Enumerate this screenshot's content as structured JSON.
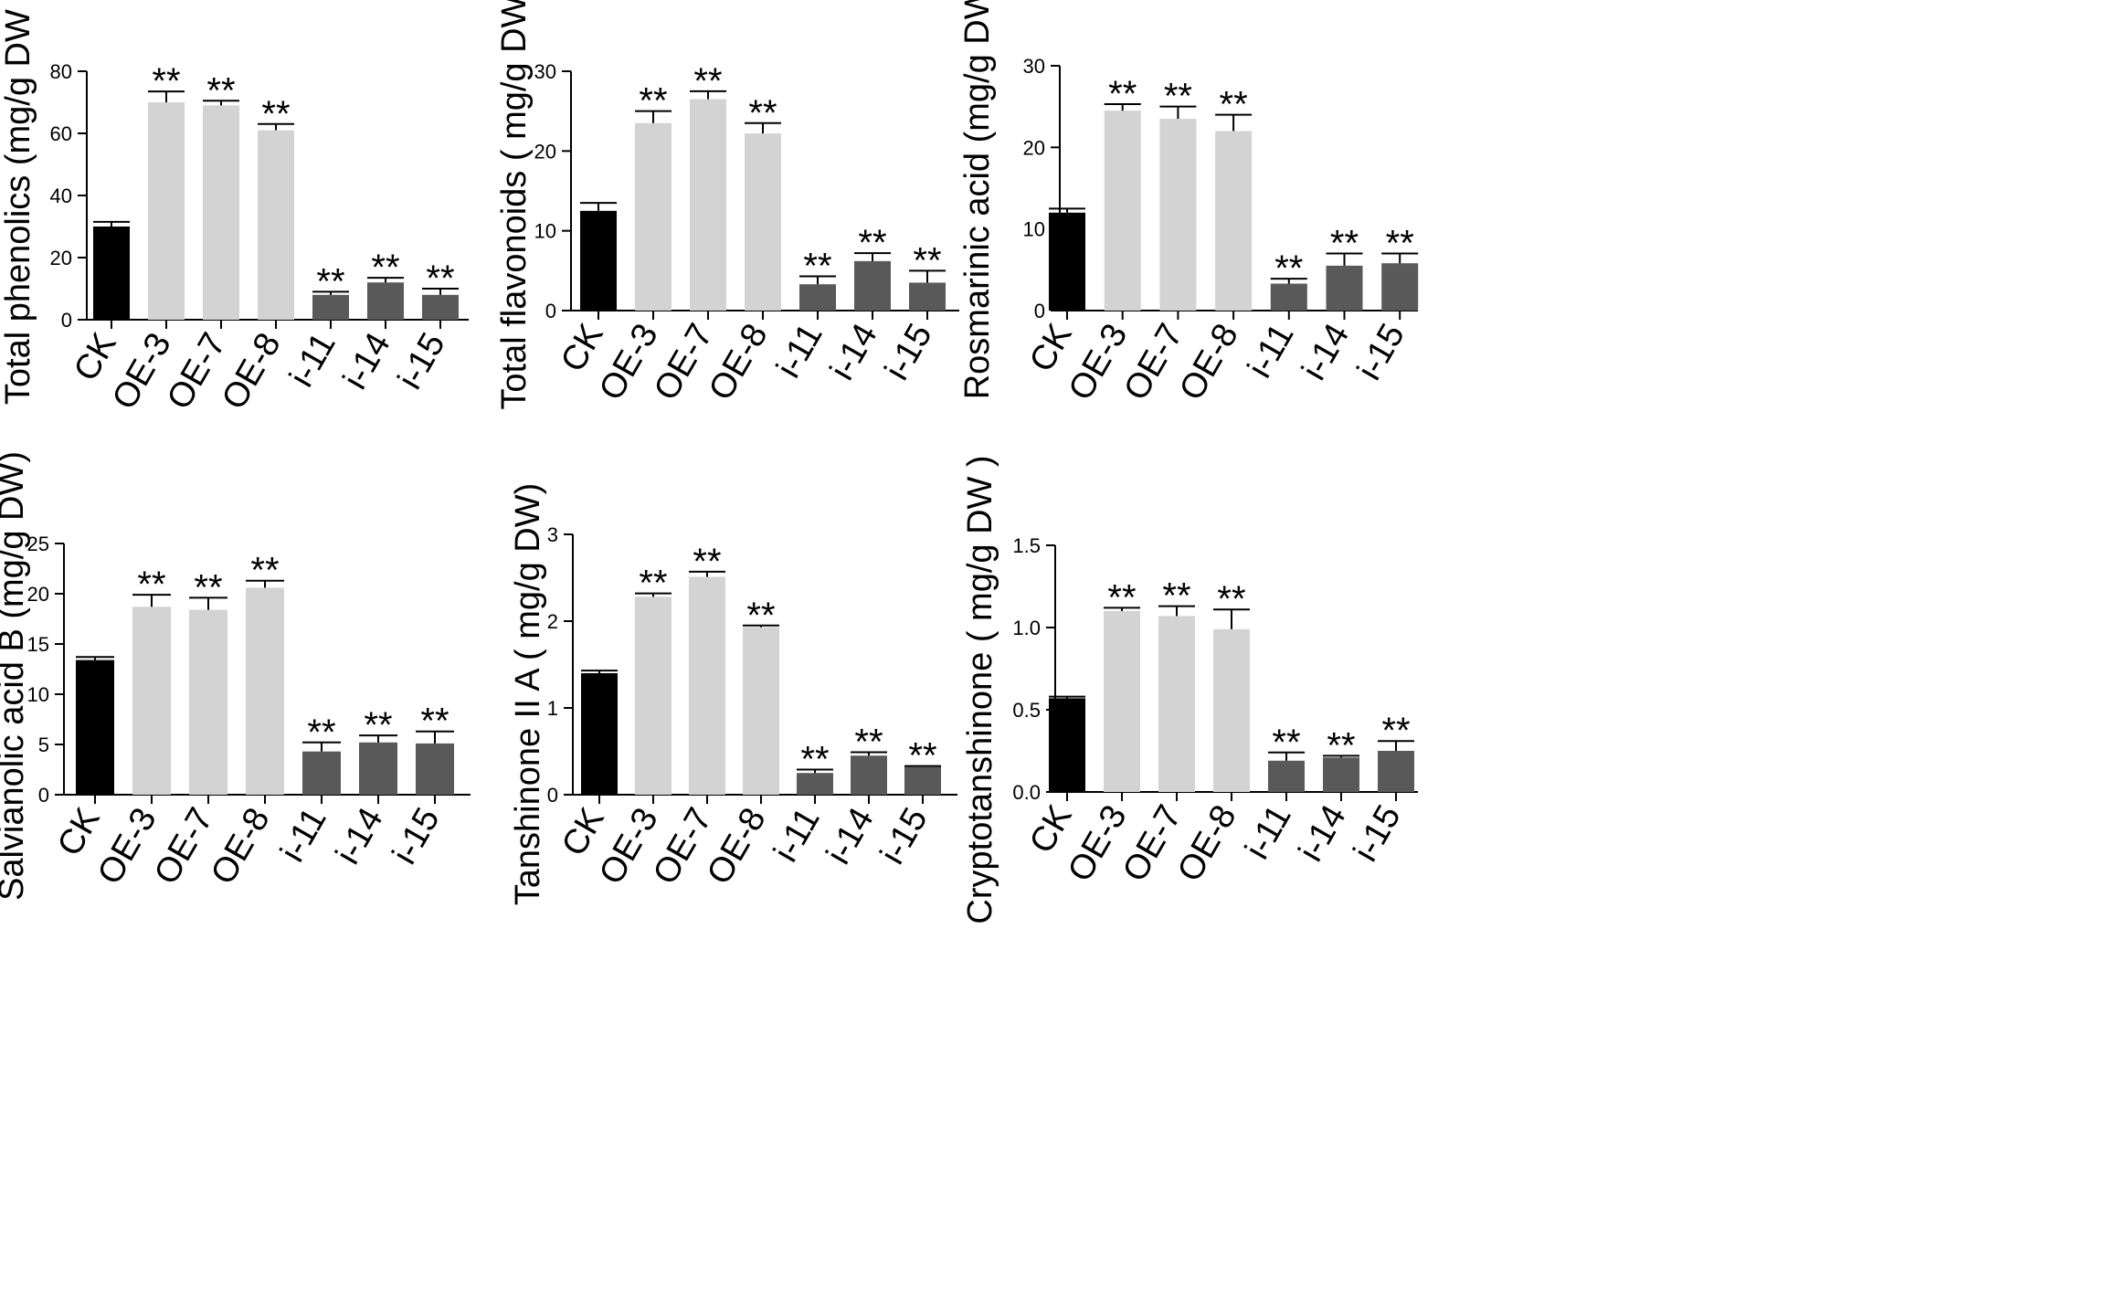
{
  "chart_data": [
    {
      "type": "bar",
      "ylabel": "Total phenolics (mg/g DW )",
      "categories": [
        "CK",
        "OE-3",
        "OE-7",
        "OE-8",
        "i-11",
        "i-14",
        "i-15"
      ],
      "values": [
        30,
        70,
        69,
        61,
        8,
        12,
        8
      ],
      "errors": [
        1.5,
        3.5,
        1.5,
        2,
        1,
        1.5,
        2
      ],
      "significance": [
        "",
        "**",
        "**",
        "**",
        "**",
        "**",
        "**"
      ],
      "ylim": [
        0,
        80
      ],
      "yticks": [
        "0",
        "20",
        "40",
        "60",
        "80"
      ],
      "colors": [
        "#000000",
        "#d3d3d3",
        "#d3d3d3",
        "#d3d3d3",
        "#595959",
        "#595959",
        "#595959"
      ]
    },
    {
      "type": "bar",
      "ylabel": "Total flavonoids ( mg/g DW )",
      "categories": [
        "CK",
        "OE-3",
        "OE-7",
        "OE-8",
        "i-11",
        "i-14",
        "i-15"
      ],
      "values": [
        12.5,
        23.5,
        26.5,
        22.2,
        3.3,
        6.2,
        3.5
      ],
      "errors": [
        1,
        1.5,
        1,
        1.3,
        1,
        1,
        1.5
      ],
      "significance": [
        "",
        "**",
        "**",
        "**",
        "**",
        "**",
        "**"
      ],
      "ylim": [
        0,
        30
      ],
      "yticks": [
        "0",
        "10",
        "20",
        "30"
      ],
      "colors": [
        "#000000",
        "#d3d3d3",
        "#d3d3d3",
        "#d3d3d3",
        "#595959",
        "#595959",
        "#595959"
      ]
    },
    {
      "type": "bar",
      "ylabel": "Rosmarinic acid (mg/g DW)",
      "categories": [
        "CK",
        "OE-3",
        "OE-7",
        "OE-8",
        "i-11",
        "i-14",
        "i-15"
      ],
      "values": [
        12,
        24.5,
        23.5,
        22,
        3.3,
        5.5,
        5.8
      ],
      "errors": [
        0.5,
        0.8,
        1.5,
        2,
        0.6,
        1.5,
        1.2
      ],
      "significance": [
        "",
        "**",
        "**",
        "**",
        "**",
        "**",
        "**"
      ],
      "ylim": [
        0,
        30
      ],
      "yticks": [
        "0",
        "10",
        "20",
        "30"
      ],
      "colors": [
        "#000000",
        "#d3d3d3",
        "#d3d3d3",
        "#d3d3d3",
        "#595959",
        "#595959",
        "#595959"
      ]
    },
    {
      "type": "bar",
      "ylabel": "Salvianolic acid B (mg/g DW)",
      "categories": [
        "CK",
        "OE-3",
        "OE-7",
        "OE-8",
        "i-11",
        "i-14",
        "i-15"
      ],
      "values": [
        13.4,
        18.7,
        18.4,
        20.6,
        4.3,
        5.2,
        5.1
      ],
      "errors": [
        0.3,
        1.2,
        1.2,
        0.7,
        0.9,
        0.7,
        1.2
      ],
      "significance": [
        "",
        "**",
        "**",
        "**",
        "**",
        "**",
        "**"
      ],
      "ylim": [
        0,
        25
      ],
      "yticks": [
        "0",
        "5",
        "10",
        "15",
        "20",
        "25"
      ],
      "colors": [
        "#000000",
        "#d3d3d3",
        "#d3d3d3",
        "#d3d3d3",
        "#595959",
        "#595959",
        "#595959"
      ]
    },
    {
      "type": "bar",
      "ylabel": "Tanshinone II A ( mg/g DW)",
      "categories": [
        "CK",
        "OE-3",
        "OE-7",
        "OE-8",
        "i-11",
        "i-14",
        "i-15"
      ],
      "values": [
        1.4,
        2.28,
        2.51,
        1.93,
        0.25,
        0.45,
        0.32
      ],
      "errors": [
        0.03,
        0.04,
        0.06,
        0.02,
        0.04,
        0.04,
        0.01
      ],
      "significance": [
        "",
        "**",
        "**",
        "**",
        "**",
        "**",
        "**"
      ],
      "ylim": [
        0,
        3
      ],
      "yticks": [
        "0",
        "1",
        "2",
        "3"
      ],
      "colors": [
        "#000000",
        "#d3d3d3",
        "#d3d3d3",
        "#d3d3d3",
        "#595959",
        "#595959",
        "#595959"
      ]
    },
    {
      "type": "bar",
      "ylabel": "Cryptotanshinone ( mg/g DW )",
      "categories": [
        "CK",
        "OE-3",
        "OE-7",
        "OE-8",
        "i-11",
        "i-14",
        "i-15"
      ],
      "values": [
        0.57,
        1.1,
        1.07,
        0.99,
        0.19,
        0.21,
        0.25
      ],
      "errors": [
        0.01,
        0.02,
        0.06,
        0.12,
        0.05,
        0.01,
        0.06
      ],
      "significance": [
        "",
        "**",
        "**",
        "**",
        "**",
        "**",
        "**"
      ],
      "ylim": [
        0,
        1.5
      ],
      "yticks": [
        "0.0",
        "0.5",
        "1.0",
        "1.5"
      ],
      "colors": [
        "#000000",
        "#d3d3d3",
        "#d3d3d3",
        "#d3d3d3",
        "#595959",
        "#595959",
        "#595959"
      ]
    }
  ]
}
